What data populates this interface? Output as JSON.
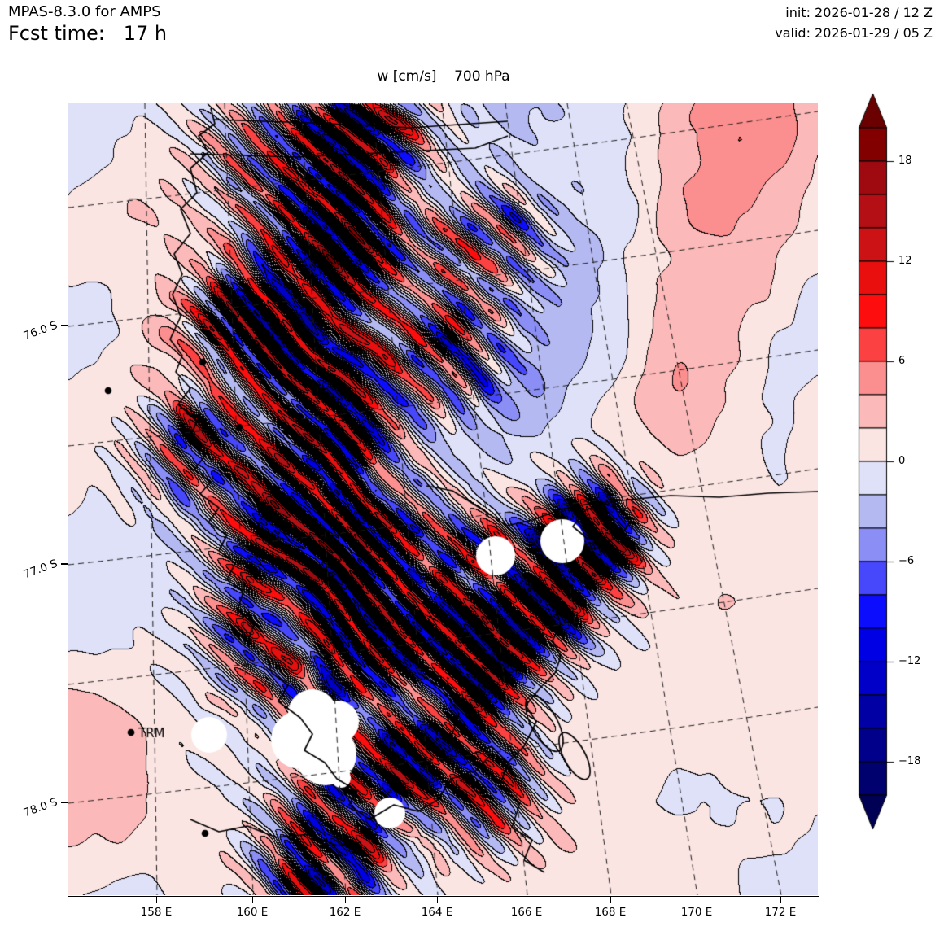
{
  "header": {
    "model": "MPAS-8.3.0 for AMPS",
    "fcst": "Fcst time:   17 h",
    "init": "init: 2026-01-28 / 12 Z",
    "valid": "valid: 2026-01-29 / 05 Z"
  },
  "title": "w [cm/s]    700 hPa",
  "chart_data": {
    "type": "heatmap",
    "subtype": "filled-contour-map",
    "variable": "w",
    "units": "cm/s",
    "pressure_level": "700 hPa",
    "projection": "south polar stereographic (Ross Sea / Victoria Land region, Antarctica)",
    "contour_interval": 2,
    "value_range_displayed": [
      -20,
      20
    ],
    "x_axis": {
      "label": "longitude",
      "ticks": [
        "158 E",
        "160 E",
        "162 E",
        "164 E",
        "166 E",
        "168 E",
        "170 E",
        "172 E"
      ]
    },
    "y_axis": {
      "label": "latitude",
      "ticks": [
        "76.0 S",
        "77.0 S",
        "78.0 S"
      ]
    },
    "colorbar": {
      "orientation": "vertical-right",
      "levels": [
        -20,
        -18,
        -16,
        -14,
        -12,
        -10,
        -8,
        -6,
        -4,
        -2,
        0,
        2,
        4,
        6,
        8,
        10,
        12,
        14,
        16,
        18,
        20
      ],
      "tick_values": [
        18,
        12,
        6,
        0,
        -6,
        -12,
        -18
      ],
      "tick_labels": [
        "18",
        "12",
        "6",
        "0",
        "−6",
        "−12",
        "−18"
      ],
      "colors": [
        "#00006e",
        "#00008b",
        "#0000a4",
        "#0000c8",
        "#0000e4",
        "#0d0dfe",
        "#4747fb",
        "#8b8ef4",
        "#b4b9f1",
        "#dfe1f8",
        "#fbe5e3",
        "#fcb9b9",
        "#fb8e8e",
        "#fb4141",
        "#fd0d0d",
        "#ea0f0f",
        "#cd1216",
        "#b30f14",
        "#9e0a10",
        "#820000"
      ],
      "under_color": "#000054",
      "over_color": "#6b0000"
    },
    "stations": [
      {
        "label": "TRM"
      }
    ],
    "graticule": "dashed black lines, meridians every 2 deg, parallels every 0.5 deg",
    "coastline": "solid black Victoria Land coast, Ross Island and Ross Ice Shelf edge",
    "masked_regions": "solid white patches where terrain lies above the 700 hPa surface",
    "field_summary": "Mostly weak vertical motion (0 to 2 cm/s, pale pink) with banded mountain-wave couplets up to +/-18 cm/s along the Transantarctic Mountains (center-left and lower-center), a broad smooth updraft band on the right, and scattered weak downdraft (pale blue) patches."
  }
}
